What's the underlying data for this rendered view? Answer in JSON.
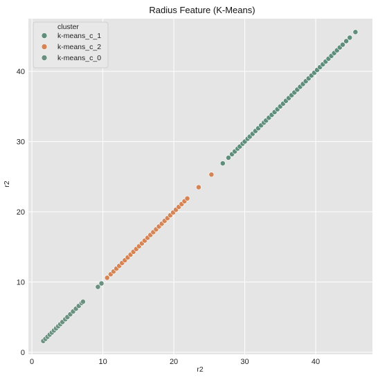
{
  "chart_data": {
    "type": "scatter",
    "title": "Radius Feature (K-Means)",
    "xlabel": "r2",
    "ylabel": "r2",
    "xlim": [
      -0.5,
      48
    ],
    "ylim": [
      -0.3,
      47.5
    ],
    "xticks": [
      0,
      10,
      20,
      30,
      40
    ],
    "yticks": [
      0,
      10,
      20,
      30,
      40
    ],
    "grid": true,
    "legend": {
      "title": "cluster",
      "placement": "top-left",
      "entries": [
        {
          "label": "k-means_c_1",
          "color": "#5f8f7b"
        },
        {
          "label": "k-means_c_2",
          "color": "#d58555"
        },
        {
          "label": "k-means_c_0",
          "color": "#6a9080"
        }
      ]
    },
    "series": [
      {
        "name": "k-means_c_1",
        "color": "#5f8f7b",
        "x": [
          26.9,
          27.7,
          28.2,
          28.6,
          29.0,
          29.3,
          29.7,
          30.0,
          30.4,
          30.7,
          31.1,
          31.5,
          31.9,
          32.3,
          32.7,
          33.0,
          33.4,
          33.8,
          34.2,
          34.6,
          35.0,
          35.4,
          35.8,
          36.2,
          36.6,
          37.0,
          37.4,
          37.8,
          38.2,
          38.6,
          39.0,
          39.4,
          39.8,
          40.2,
          40.6,
          41.0,
          41.4,
          41.8,
          42.2,
          42.6,
          43.0,
          43.4,
          43.8,
          44.3,
          44.8,
          45.6
        ],
        "y": [
          26.9,
          27.7,
          28.2,
          28.6,
          29.0,
          29.3,
          29.7,
          30.0,
          30.4,
          30.7,
          31.1,
          31.5,
          31.9,
          32.3,
          32.7,
          33.0,
          33.4,
          33.8,
          34.2,
          34.6,
          35.0,
          35.4,
          35.8,
          36.2,
          36.6,
          37.0,
          37.4,
          37.8,
          38.2,
          38.6,
          39.0,
          39.4,
          39.8,
          40.2,
          40.6,
          41.0,
          41.4,
          41.8,
          42.2,
          42.6,
          43.0,
          43.4,
          43.8,
          44.3,
          44.8,
          45.6
        ]
      },
      {
        "name": "k-means_c_2",
        "color": "#d58555",
        "x": [
          10.6,
          11.1,
          11.5,
          11.9,
          12.3,
          12.7,
          13.1,
          13.5,
          13.9,
          14.3,
          14.7,
          15.1,
          15.5,
          15.9,
          16.3,
          16.7,
          17.1,
          17.5,
          17.9,
          18.3,
          18.7,
          19.1,
          19.5,
          19.9,
          20.3,
          20.7,
          21.1,
          21.5,
          21.9,
          23.5,
          25.3
        ],
        "y": [
          10.6,
          11.1,
          11.5,
          11.9,
          12.3,
          12.7,
          13.1,
          13.5,
          13.9,
          14.3,
          14.7,
          15.1,
          15.5,
          15.9,
          16.3,
          16.7,
          17.1,
          17.5,
          17.9,
          18.3,
          18.7,
          19.1,
          19.5,
          19.9,
          20.3,
          20.7,
          21.1,
          21.5,
          21.9,
          23.5,
          25.3
        ]
      },
      {
        "name": "k-means_c_0",
        "color": "#6a9080",
        "x": [
          1.6,
          1.9,
          2.2,
          2.5,
          2.8,
          3.1,
          3.4,
          3.7,
          4.0,
          4.3,
          4.7,
          5.0,
          5.4,
          5.8,
          6.2,
          6.6,
          7.0,
          7.2,
          9.3,
          9.8
        ],
        "y": [
          1.6,
          1.9,
          2.2,
          2.5,
          2.8,
          3.1,
          3.4,
          3.7,
          4.0,
          4.3,
          4.7,
          5.0,
          5.4,
          5.8,
          6.2,
          6.6,
          7.0,
          7.2,
          9.3,
          9.8
        ]
      }
    ]
  }
}
